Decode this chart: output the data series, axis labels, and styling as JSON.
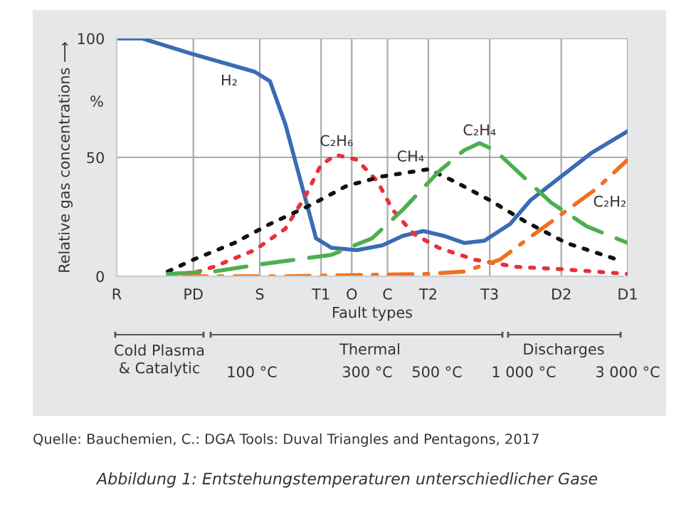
{
  "chart_data": {
    "type": "line",
    "xlabel": "Fault types",
    "ylabel": "Relative gas concentrations ⟶",
    "categories": [
      "R",
      null,
      null,
      null,
      null,
      null,
      null,
      null,
      null,
      null,
      null,
      null,
      null,
      null,
      null,
      "PD",
      null,
      null,
      null,
      null,
      null,
      null,
      null,
      null,
      null,
      null,
      null,
      null,
      "S",
      null,
      null,
      null,
      null,
      null,
      null,
      null,
      null,
      null,
      null,
      null,
      "T1",
      null,
      null,
      null,
      null,
      null,
      "O",
      null,
      null,
      null,
      null,
      null,
      null,
      "C",
      null,
      null,
      null,
      null,
      null,
      null,
      null,
      "T2",
      null,
      null,
      null,
      null,
      null,
      null,
      null,
      null,
      null,
      null,
      null,
      "T3",
      null,
      null,
      null,
      null,
      null,
      null,
      null,
      null,
      null,
      null,
      null,
      null,
      null,
      "D2",
      null,
      null,
      null,
      null,
      null,
      null,
      null,
      null,
      null,
      null,
      null,
      null,
      "D1"
    ],
    "ylim": [
      0,
      100
    ],
    "yticks": [
      0,
      50,
      100
    ],
    "grid": true,
    "legend": false,
    "series": [
      {
        "name": "H₂",
        "color": "#3a6bb5",
        "line_style": "solid",
        "values": [
          100,
          null,
          null,
          null,
          null,
          100,
          null,
          null,
          null,
          null,
          null,
          null,
          null,
          null,
          94,
          null,
          null,
          null,
          null,
          null,
          null,
          null,
          null,
          null,
          null,
          null,
          null,
          86,
          null,
          null,
          82,
          null,
          null,
          64,
          null,
          null,
          null,
          32,
          null,
          16,
          null,
          null,
          12,
          null,
          null,
          null,
          null,
          11,
          null,
          null,
          null,
          null,
          13,
          null,
          null,
          null,
          17,
          null,
          null,
          null,
          19,
          null,
          null,
          null,
          17,
          null,
          null,
          null,
          14,
          null,
          null,
          null,
          15,
          null,
          null,
          null,
          null,
          22,
          null,
          null,
          null,
          32,
          null,
          null,
          null,
          null,
          null,
          42,
          null,
          null,
          null,
          null,
          null,
          52,
          null,
          null,
          null,
          null,
          null,
          null,
          61
        ]
      },
      {
        "name": "C₂H₆",
        "color": "#e8303a",
        "line_style": "dotted",
        "values": [
          null,
          null,
          null,
          null,
          null,
          null,
          null,
          null,
          null,
          null,
          null,
          null,
          null,
          0,
          null,
          null,
          null,
          null,
          null,
          4,
          null,
          null,
          null,
          null,
          null,
          null,
          null,
          11,
          null,
          null,
          null,
          null,
          null,
          20,
          null,
          null,
          null,
          34,
          null,
          null,
          47,
          null,
          null,
          51,
          null,
          null,
          null,
          49,
          null,
          null,
          null,
          40,
          null,
          null,
          28,
          null,
          null,
          null,
          18,
          null,
          null,
          null,
          null,
          12,
          null,
          null,
          null,
          null,
          null,
          null,
          7,
          null,
          null,
          null,
          null,
          null,
          null,
          null,
          4,
          null,
          null,
          null,
          null,
          null,
          null,
          null,
          null,
          3,
          null,
          null,
          null,
          null,
          null,
          null,
          null,
          null,
          null,
          null,
          null,
          null,
          1
        ]
      },
      {
        "name": "CH₄",
        "color": "#111111",
        "line_style": "dotted",
        "values": [
          null,
          null,
          null,
          null,
          null,
          null,
          null,
          null,
          null,
          null,
          2,
          null,
          null,
          null,
          null,
          7,
          null,
          null,
          null,
          null,
          null,
          null,
          null,
          14,
          null,
          null,
          null,
          null,
          null,
          null,
          22,
          null,
          null,
          null,
          null,
          null,
          null,
          null,
          30,
          null,
          null,
          null,
          null,
          null,
          null,
          38,
          null,
          null,
          null,
          null,
          null,
          null,
          42,
          null,
          null,
          null,
          null,
          null,
          44,
          null,
          null,
          45,
          null,
          null,
          null,
          null,
          40,
          null,
          null,
          null,
          null,
          null,
          null,
          32,
          null,
          null,
          null,
          null,
          null,
          null,
          23,
          null,
          null,
          null,
          null,
          null,
          null,
          null,
          14,
          null,
          null,
          null,
          null,
          null,
          null,
          null,
          null,
          null,
          7,
          null,
          null
        ]
      },
      {
        "name": "C₂H₄",
        "color": "#4caf50",
        "line_style": "dashed",
        "values": [
          null,
          null,
          null,
          null,
          null,
          null,
          null,
          null,
          null,
          null,
          1,
          null,
          null,
          null,
          null,
          null,
          null,
          null,
          null,
          2,
          null,
          null,
          null,
          null,
          null,
          null,
          null,
          null,
          5,
          null,
          null,
          null,
          null,
          null,
          null,
          null,
          null,
          null,
          null,
          null,
          null,
          null,
          9,
          null,
          null,
          null,
          null,
          null,
          null,
          null,
          16,
          null,
          null,
          null,
          null,
          null,
          28,
          null,
          null,
          null,
          null,
          null,
          null,
          44,
          null,
          null,
          null,
          null,
          53,
          null,
          null,
          56,
          null,
          null,
          53,
          null,
          null,
          null,
          null,
          null,
          41,
          null,
          null,
          null,
          null,
          31,
          null,
          null,
          null,
          null,
          null,
          null,
          21,
          null,
          null,
          null,
          null,
          null,
          null,
          null,
          14
        ]
      },
      {
        "name": "C₂H₂",
        "color": "#f07020",
        "line_style": "dashdot",
        "values": [
          null,
          null,
          null,
          null,
          null,
          null,
          null,
          null,
          null,
          null,
          null,
          null,
          null,
          0,
          null,
          null,
          null,
          null,
          null,
          null,
          null,
          null,
          null,
          null,
          null,
          null,
          null,
          null,
          null,
          null,
          null,
          null,
          null,
          0,
          null,
          null,
          null,
          null,
          null,
          null,
          null,
          null,
          null,
          null,
          null,
          null,
          null,
          null,
          null,
          null,
          null,
          null,
          null,
          null,
          null,
          null,
          null,
          null,
          null,
          null,
          null,
          1,
          null,
          null,
          null,
          null,
          null,
          null,
          2,
          null,
          null,
          null,
          null,
          null,
          null,
          7,
          null,
          null,
          null,
          null,
          15,
          null,
          null,
          null,
          null,
          null,
          null,
          26,
          null,
          null,
          null,
          null,
          null,
          null,
          37,
          null,
          null,
          null,
          null,
          null,
          49
        ]
      }
    ],
    "annotations": [
      "%",
      "Cold Plasma\n& Catalytic",
      "Thermal",
      "Discharges",
      "100 °C",
      "300 °C",
      "500 °C",
      "1 000 °C",
      "3 000 °C",
      "Quelle: Bauchemien, C.: DGA Tools: Duval Triangles and Pentagons, 2017",
      "Abbildung 1: Entstehungstemperaturen unterschiedlicher Gase"
    ]
  }
}
